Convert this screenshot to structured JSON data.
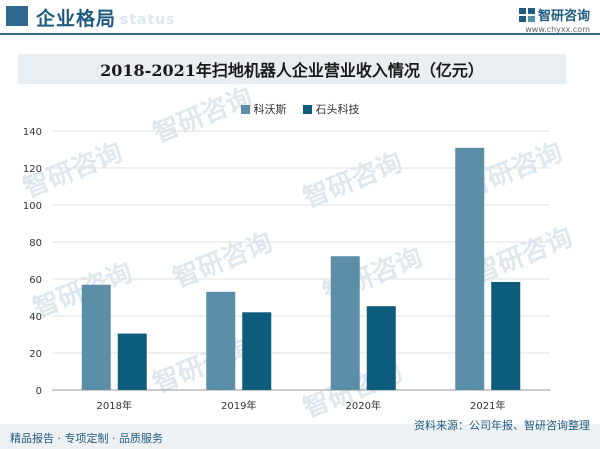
{
  "header": {
    "title": "企业格局",
    "ghost_text": "status"
  },
  "brand": {
    "name": "智研咨询",
    "url": "www.chyxx.com"
  },
  "watermark": {
    "text": "智研咨询"
  },
  "footer": {
    "left": "精品报告 · 专项定制 · 品质服务",
    "source": "资料来源：公司年报、智研咨询整理"
  },
  "colors": {
    "series1": "#5b8fa8",
    "series2": "#0e5c7c",
    "accent": "#2f6b8e"
  },
  "chart_data": {
    "type": "bar",
    "title": "2018-2021年扫地机器人企业营业收入情况（亿元）",
    "categories": [
      "2018年",
      "2019年",
      "2020年",
      "2021年"
    ],
    "series": [
      {
        "name": "科沃斯",
        "values": [
          56.9,
          53.1,
          72.3,
          130.9
        ]
      },
      {
        "name": "石头科技",
        "values": [
          30.5,
          42.0,
          45.3,
          58.4
        ]
      }
    ],
    "ylim": [
      0,
      140
    ],
    "yticks": [
      0,
      20,
      40,
      60,
      80,
      100,
      120,
      140
    ],
    "xlabel": "",
    "ylabel": "",
    "grid": true,
    "legend": "top-center"
  }
}
